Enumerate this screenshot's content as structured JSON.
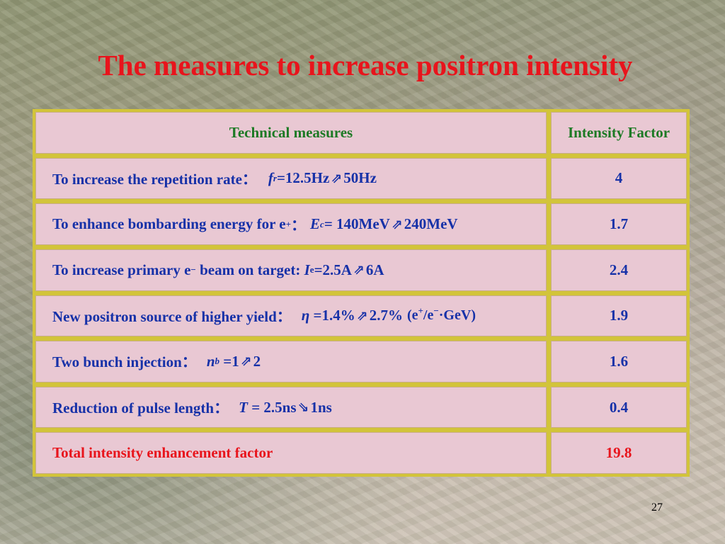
{
  "slide": {
    "title": "The measures to increase positron intensity",
    "page_number": "27"
  },
  "table": {
    "headers": {
      "measures": "Technical measures",
      "factor": "Intensity Factor"
    },
    "rows": [
      {
        "label": "To increase the repetition rate：",
        "var": "f",
        "var_sub": "r",
        "value_from": "=12.5Hz",
        "arrow": "⇗",
        "value_to": "50Hz",
        "factor": "4"
      },
      {
        "label": "To enhance bombarding energy for e",
        "label_sup": "+",
        "colon": "：",
        "var": "E",
        "var_sub": "c",
        "value_from": " = 140MeV",
        "arrow": "⇗",
        "value_to": "240MeV",
        "factor": "1.7"
      },
      {
        "label": "To increase primary e",
        "label_sup": "−",
        "label_after": " beam on target: ",
        "var": "I",
        "var_sub": "e",
        "value_from": "=2.5A",
        "arrow": "⇗",
        "value_to": "6A",
        "factor": "2.4"
      },
      {
        "label": "New positron source of higher yield：",
        "var": "η",
        "value_from": " =1.4%",
        "arrow": "⇗",
        "value_to": "2.7%",
        "unit_open": "(e",
        "unit_sup1": "+",
        "unit_mid": "/e",
        "unit_sup2": "−",
        "unit_close": "·GeV)",
        "factor": "1.9"
      },
      {
        "label": "Two bunch injection：",
        "var": "n",
        "var_sub": "b",
        "value_from": " =1",
        "arrow": "⇗",
        "value_to": "2",
        "factor": "1.6"
      },
      {
        "label": "Reduction of pulse length：",
        "var": "T",
        "value_from": " = 2.5ns",
        "arrow": "⇘",
        "value_to": "1ns",
        "factor": "0.4"
      }
    ],
    "total": {
      "label": "Total intensity enhancement factor",
      "factor": "19.8"
    }
  },
  "colors": {
    "title": "#e8141c",
    "header_text": "#1d7a25",
    "body_text": "#1631a8",
    "total_text": "#e8141c",
    "cell_fill": "#ecc8ec",
    "frame": "#d2c43a"
  }
}
